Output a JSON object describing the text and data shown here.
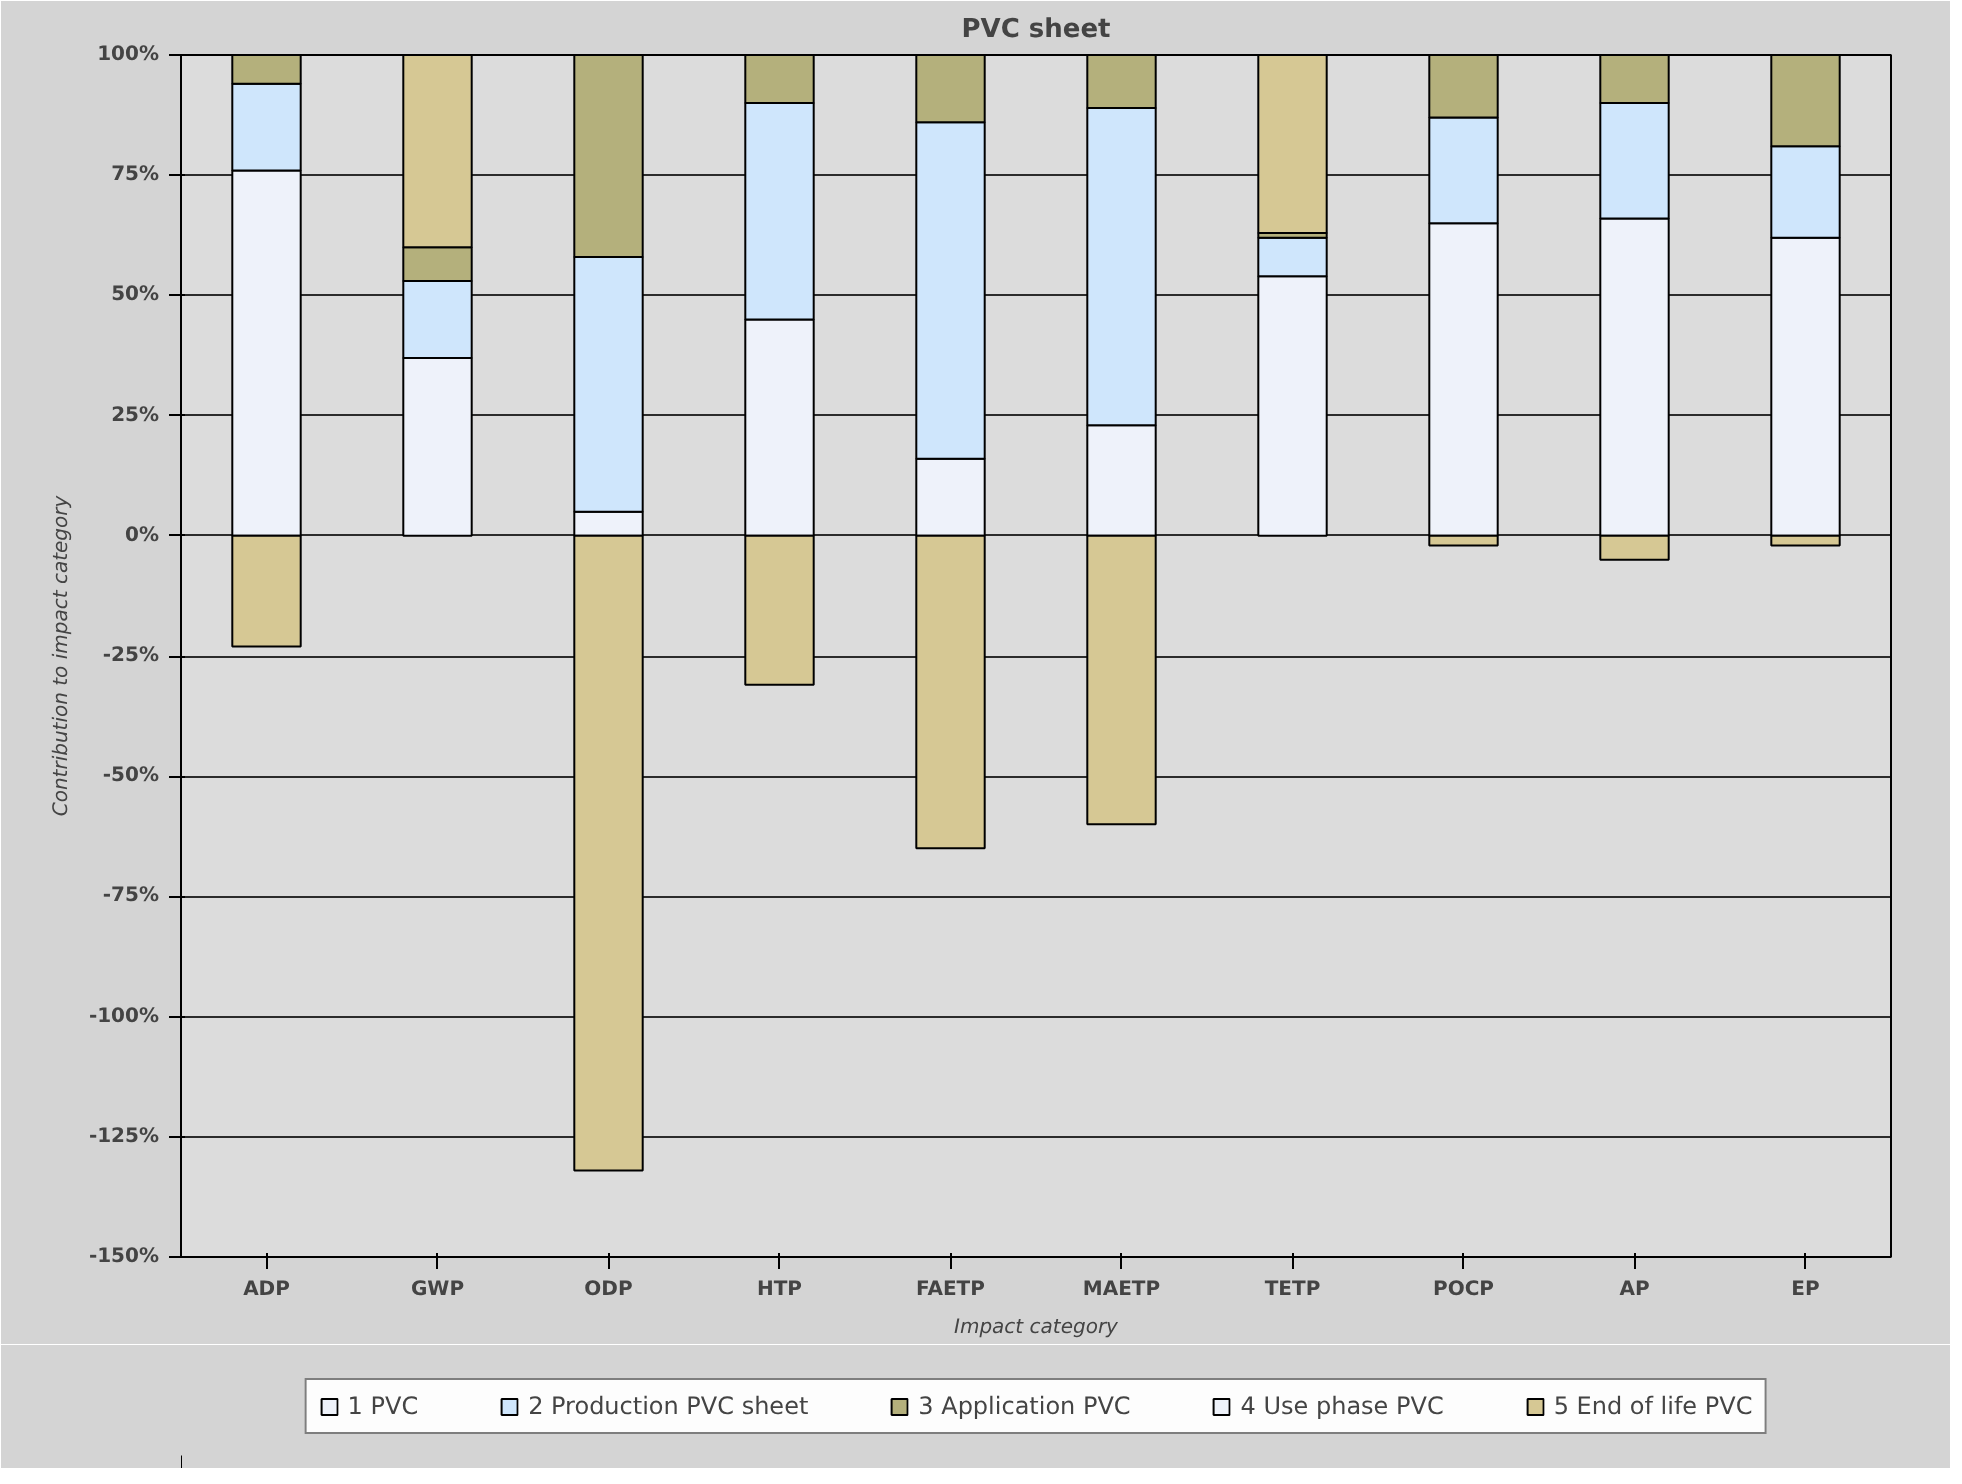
{
  "chart_data": {
    "type": "bar",
    "stacked": true,
    "title": "PVC sheet",
    "xlabel": "Impact category",
    "ylabel": "Contribution to impact category",
    "categories": [
      "ADP",
      "GWP",
      "ODP",
      "HTP",
      "FAETP",
      "MAETP",
      "TETP",
      "POCP",
      "AP",
      "EP"
    ],
    "series": [
      {
        "name": "1 PVC",
        "color": "#eef2fa",
        "values": [
          76,
          37,
          5,
          45,
          16,
          23,
          54,
          65,
          66,
          62
        ]
      },
      {
        "name": "2 Production PVC sheet",
        "color": "#cfe6fc",
        "values": [
          18,
          16,
          53,
          45,
          70,
          66,
          8,
          22,
          24,
          19
        ]
      },
      {
        "name": "3 Application PVC",
        "color": "#b4b07c",
        "values": [
          6,
          7,
          42,
          10,
          14,
          11,
          1,
          13,
          10,
          19
        ]
      },
      {
        "name": "4 Use phase PVC",
        "color": "#eef2fa",
        "values": [
          null,
          null,
          null,
          null,
          null,
          null,
          null,
          null,
          null,
          null
        ]
      },
      {
        "name": "5 End of life PVC",
        "color": "#d6c894",
        "values": [
          -23,
          40,
          -132,
          -31,
          -65,
          -60,
          37,
          -2,
          -5,
          -2
        ]
      }
    ],
    "ylim": [
      -150,
      100
    ],
    "yticks": [
      {
        "value": -150,
        "label": "-150%"
      },
      {
        "value": -125,
        "label": "-125%"
      },
      {
        "value": -100,
        "label": "-100%"
      },
      {
        "value": -75,
        "label": "-75%"
      },
      {
        "value": -50,
        "label": "-50%"
      },
      {
        "value": -25,
        "label": "-25%"
      },
      {
        "value": 0,
        "label": "0%"
      },
      {
        "value": 25,
        "label": "25%"
      },
      {
        "value": 50,
        "label": "50%"
      },
      {
        "value": 75,
        "label": "75%"
      },
      {
        "value": 100,
        "label": "100%"
      }
    ],
    "grid": "y",
    "legend": "bottom"
  }
}
